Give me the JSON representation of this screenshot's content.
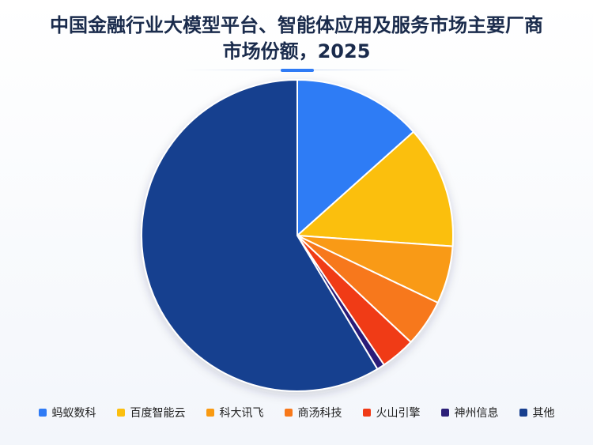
{
  "chart_data": {
    "type": "pie",
    "title": "中国金融行业大模型平台、智能体应用及服务市场主要厂商市场份额，2025",
    "categories": [
      "蚂蚁数科",
      "百度智能云",
      "科大讯飞",
      "商汤科技",
      "火山引擎",
      "神州信息",
      "其他"
    ],
    "values": [
      13.4,
      12.7,
      6.0,
      4.9,
      3.6,
      0.8,
      58.6
    ],
    "colors": [
      "#2f7bf5",
      "#fbbf0f",
      "#f99a12",
      "#f7781a",
      "#f03a17",
      "#2b1f78",
      "#183f8f"
    ],
    "legend": "bottom"
  }
}
